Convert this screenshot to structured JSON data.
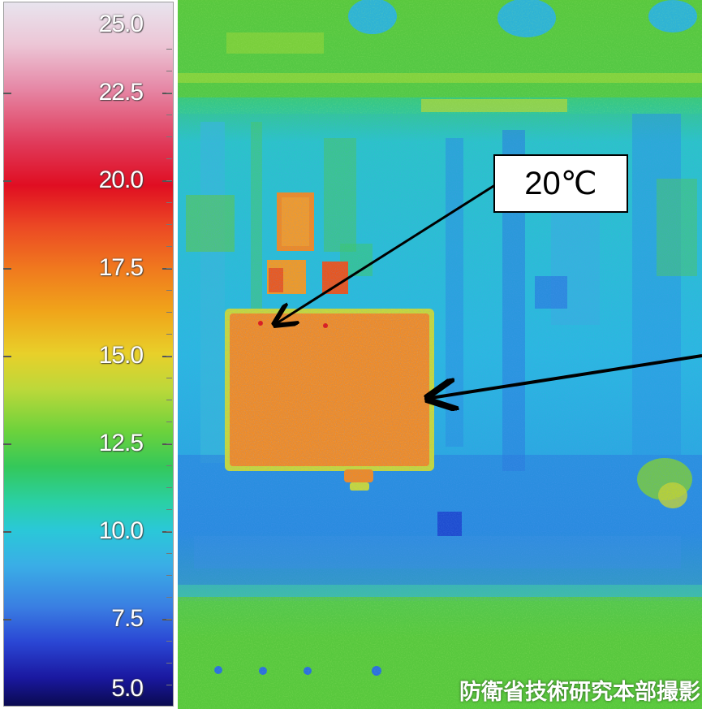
{
  "scale": {
    "labels": [
      "25.0",
      "22.5",
      "20.0",
      "17.5",
      "15.0",
      "12.5",
      "10.0",
      "7.5",
      "5.0"
    ]
  },
  "annotation": {
    "text": "20℃"
  },
  "watermark": {
    "text": "防衛省技術研究本部撮影"
  },
  "colors": {
    "background_field": "#2ad0e0",
    "cool": "#3a7ee2",
    "warm_panel": "#f08a24",
    "hot_spot": "#e02020",
    "ambient": "#58cc3a"
  }
}
